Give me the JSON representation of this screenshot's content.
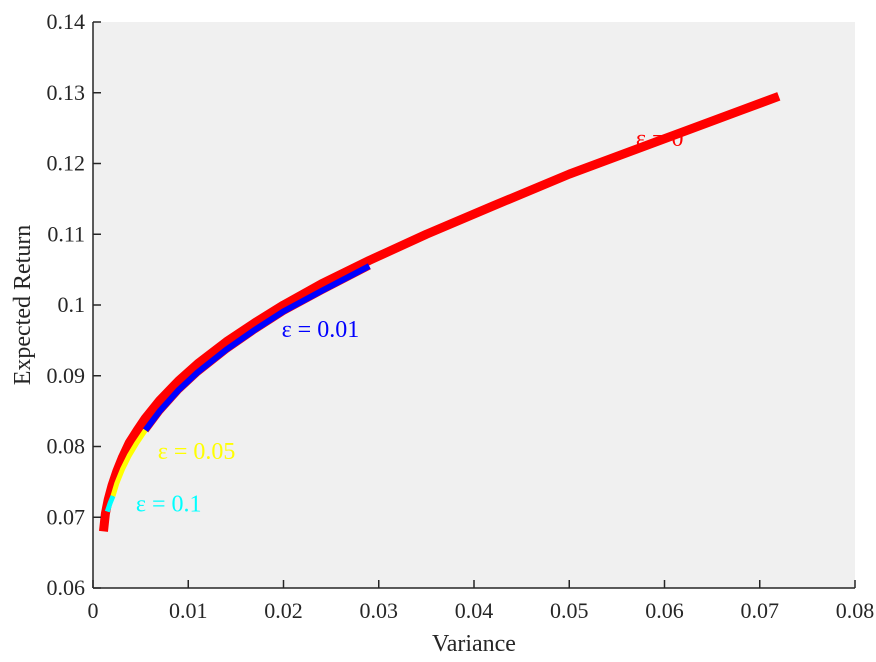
{
  "chart_data": {
    "type": "line",
    "title": "",
    "xlabel": "Variance",
    "ylabel": "Expected Return",
    "xlim": [
      0,
      0.08
    ],
    "ylim": [
      0.06,
      0.14
    ],
    "x_ticks": [
      "0",
      "0.01",
      "0.02",
      "0.03",
      "0.04",
      "0.05",
      "0.06",
      "0.07",
      "0.08"
    ],
    "y_ticks": [
      "0.06",
      "0.07",
      "0.08",
      "0.09",
      "0.1",
      "0.11",
      "0.12",
      "0.13",
      "0.14"
    ],
    "grid": false,
    "background_color": "#f0f0f0",
    "series": [
      {
        "label": "ε = 0",
        "color": "#ff0000",
        "x": [
          0.0011,
          0.0013,
          0.0016,
          0.002,
          0.0025,
          0.0031,
          0.0038,
          0.0046,
          0.0055,
          0.007,
          0.009,
          0.011,
          0.014,
          0.017,
          0.02,
          0.024,
          0.029,
          0.035,
          0.042,
          0.05,
          0.059,
          0.068,
          0.072
        ],
        "y": [
          0.068,
          0.0705,
          0.0725,
          0.0745,
          0.0765,
          0.0785,
          0.0805,
          0.0822,
          0.084,
          0.0865,
          0.0893,
          0.0917,
          0.0948,
          0.0975,
          0.1,
          0.103,
          0.1063,
          0.11,
          0.114,
          0.1185,
          0.123,
          0.1275,
          0.1295
        ]
      },
      {
        "label": "ε = 0.01",
        "color": "#0000ff",
        "x": [
          0.0055,
          0.007,
          0.009,
          0.011,
          0.014,
          0.017,
          0.02,
          0.024,
          0.029
        ],
        "y": [
          0.0823,
          0.085,
          0.088,
          0.0905,
          0.0937,
          0.0965,
          0.0991,
          0.102,
          0.1055
        ]
      },
      {
        "label": "ε = 0.05",
        "color": "#ffff00",
        "x": [
          0.0021,
          0.0025,
          0.0031,
          0.0038,
          0.0046,
          0.0055
        ],
        "y": [
          0.073,
          0.0748,
          0.0768,
          0.0787,
          0.0805,
          0.0823
        ]
      },
      {
        "label": "ε = 0.1",
        "color": "#00ffff",
        "x": [
          0.0015,
          0.0018,
          0.0021
        ],
        "y": [
          0.0708,
          0.072,
          0.073
        ]
      }
    ],
    "annotations": [
      {
        "text": "ε = 0",
        "x": 0.057,
        "y": 0.1225,
        "color": "#ff0000"
      },
      {
        "text": "ε = 0.01",
        "x": 0.0198,
        "y": 0.0955,
        "color": "#0000ff"
      },
      {
        "text": "ε = 0.05",
        "x": 0.0068,
        "y": 0.0782,
        "color": "#ffff00"
      },
      {
        "text": "ε = 0.1",
        "x": 0.0045,
        "y": 0.0708,
        "color": "#00ffff"
      }
    ]
  }
}
